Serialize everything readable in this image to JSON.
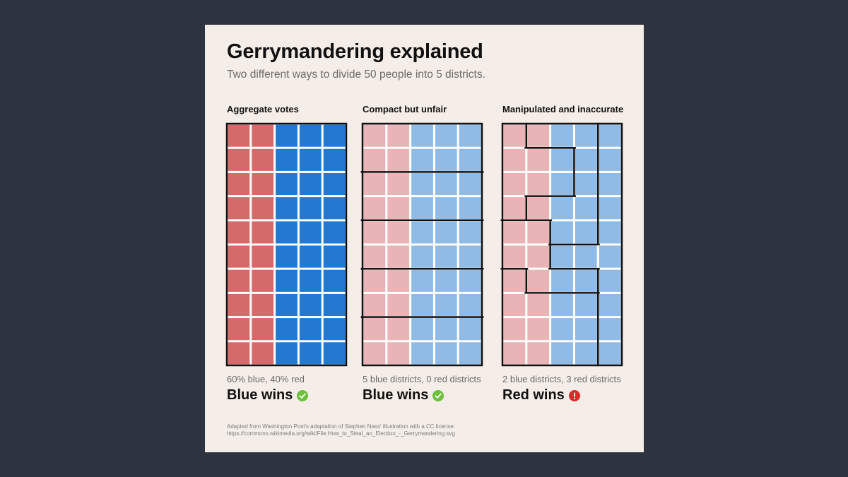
{
  "title": "Gerrymandering explained",
  "subtitle": "Two different ways to divide 50 people into 5 districts.",
  "colors": {
    "red": "#d46a6a",
    "blue": "#2279cf",
    "red_light": "#e8b4b7",
    "blue_light": "#8fbbe6",
    "border": "#111111",
    "check": "#6cc03a",
    "alert": "#e02a2a"
  },
  "panels": [
    {
      "title": "Aggregate votes",
      "caption": "60% blue, 40% red",
      "result": "Blue wins",
      "status": "check-icon",
      "shade": "saturated",
      "grid": {
        "rows": 10,
        "cols": 5
      },
      "red_cells_per_row": [
        2,
        2,
        2,
        2,
        2,
        2,
        2,
        2,
        2,
        2
      ],
      "districts": []
    },
    {
      "title": "Compact but unfair",
      "caption": "5 blue districts, 0 red districts",
      "result": "Blue wins",
      "status": "check-icon",
      "shade": "light",
      "grid": {
        "rows": 10,
        "cols": 5
      },
      "red_cells_per_row": [
        2,
        2,
        2,
        2,
        2,
        2,
        2,
        2,
        2,
        2
      ],
      "districts": [
        [
          0,
          0,
          0,
          0,
          0
        ],
        [
          0,
          0,
          0,
          0,
          0
        ],
        [
          1,
          1,
          1,
          1,
          1
        ],
        [
          1,
          1,
          1,
          1,
          1
        ],
        [
          2,
          2,
          2,
          2,
          2
        ],
        [
          2,
          2,
          2,
          2,
          2
        ],
        [
          3,
          3,
          3,
          3,
          3
        ],
        [
          3,
          3,
          3,
          3,
          3
        ],
        [
          4,
          4,
          4,
          4,
          4
        ],
        [
          4,
          4,
          4,
          4,
          4
        ]
      ]
    },
    {
      "title": "Manipulated and inaccurate",
      "caption": "2 blue districts, 3 red districts",
      "result": "Red wins",
      "status": "alert-icon",
      "shade": "light",
      "grid": {
        "rows": 10,
        "cols": 5
      },
      "red_cells_per_row": [
        2,
        2,
        2,
        2,
        2,
        2,
        2,
        2,
        2,
        2
      ],
      "districts": [
        [
          0,
          1,
          1,
          1,
          4
        ],
        [
          0,
          0,
          0,
          1,
          4
        ],
        [
          0,
          0,
          0,
          1,
          4
        ],
        [
          0,
          1,
          1,
          1,
          4
        ],
        [
          2,
          2,
          1,
          1,
          4
        ],
        [
          2,
          2,
          4,
          4,
          4
        ],
        [
          3,
          2,
          2,
          2,
          4
        ],
        [
          3,
          3,
          3,
          3,
          4
        ],
        [
          3,
          3,
          3,
          3,
          4
        ],
        [
          3,
          3,
          3,
          3,
          4
        ]
      ]
    }
  ],
  "footer": {
    "line1": "Adapted from Washington Post's adaptation of Stephen Nass' illustration with a CC license:",
    "line2": "https://commons.wikimedia.org/wiki/File:How_to_Steal_an_Election_-_Gerrymandering.svg"
  }
}
